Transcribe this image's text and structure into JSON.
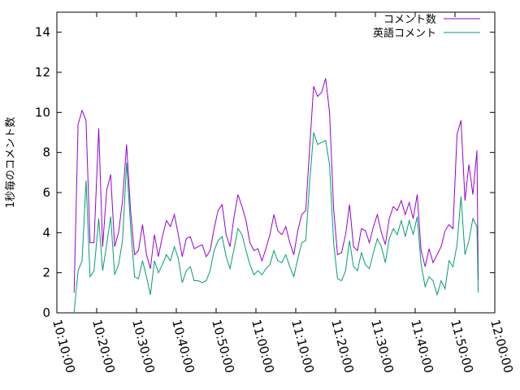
{
  "chart_data": {
    "type": "line",
    "title": "",
    "xlabel": "",
    "ylabel": "1秒毎のコメント数",
    "xlim": [
      "10:10:00",
      "12:00:00"
    ],
    "ylim": [
      0,
      15
    ],
    "x_ticks": [
      "10:10:00",
      "10:20:00",
      "10:30:00",
      "10:40:00",
      "10:50:00",
      "11:00:00",
      "11:10:00",
      "11:20:00",
      "11:30:00",
      "11:40:00",
      "11:50:00",
      "12:00:00"
    ],
    "y_ticks": [
      0,
      2,
      4,
      6,
      8,
      10,
      12,
      14
    ],
    "grid": false,
    "legend_position": "top-right",
    "series": [
      {
        "name": "コメント数",
        "color": "#9400d3",
        "points": [
          [
            "10:14:20",
            1.0
          ],
          [
            "10:15:20",
            9.4
          ],
          [
            "10:16:20",
            10.1
          ],
          [
            "10:17:20",
            9.6
          ],
          [
            "10:18:20",
            3.5
          ],
          [
            "10:19:20",
            3.5
          ],
          [
            "10:20:30",
            9.2
          ],
          [
            "10:21:30",
            3.3
          ],
          [
            "10:22:30",
            6.1
          ],
          [
            "10:23:30",
            6.9
          ],
          [
            "10:24:30",
            3.3
          ],
          [
            "10:25:30",
            4.0
          ],
          [
            "10:26:30",
            5.6
          ],
          [
            "10:27:30",
            8.4
          ],
          [
            "10:28:30",
            5.1
          ],
          [
            "10:29:30",
            2.9
          ],
          [
            "10:30:30",
            3.1
          ],
          [
            "10:31:30",
            4.4
          ],
          [
            "10:32:30",
            2.9
          ],
          [
            "10:33:30",
            2.2
          ],
          [
            "10:34:30",
            3.9
          ],
          [
            "10:35:30",
            2.8
          ],
          [
            "10:36:30",
            3.8
          ],
          [
            "10:37:30",
            4.6
          ],
          [
            "10:38:30",
            4.3
          ],
          [
            "10:39:30",
            4.9
          ],
          [
            "10:40:30",
            3.9
          ],
          [
            "10:41:30",
            2.8
          ],
          [
            "10:42:30",
            3.7
          ],
          [
            "10:43:30",
            3.8
          ],
          [
            "10:44:30",
            3.2
          ],
          [
            "10:45:30",
            3.3
          ],
          [
            "10:46:30",
            3.4
          ],
          [
            "10:47:30",
            2.8
          ],
          [
            "10:48:30",
            3.1
          ],
          [
            "10:49:30",
            4.2
          ],
          [
            "10:50:30",
            5.1
          ],
          [
            "10:51:30",
            5.4
          ],
          [
            "10:52:30",
            3.9
          ],
          [
            "10:53:30",
            3.3
          ],
          [
            "10:54:30",
            4.8
          ],
          [
            "10:55:30",
            5.9
          ],
          [
            "10:56:30",
            5.3
          ],
          [
            "10:57:30",
            4.6
          ],
          [
            "10:58:30",
            3.5
          ],
          [
            "10:59:30",
            3.1
          ],
          [
            "11:00:30",
            3.2
          ],
          [
            "11:01:30",
            2.6
          ],
          [
            "11:02:30",
            3.2
          ],
          [
            "11:03:30",
            3.9
          ],
          [
            "11:04:30",
            4.9
          ],
          [
            "11:05:30",
            4.1
          ],
          [
            "11:06:30",
            3.9
          ],
          [
            "11:07:30",
            4.3
          ],
          [
            "11:08:30",
            3.5
          ],
          [
            "11:09:30",
            2.9
          ],
          [
            "11:10:30",
            4.1
          ],
          [
            "11:11:30",
            4.9
          ],
          [
            "11:12:30",
            5.1
          ],
          [
            "11:13:30",
            8.2
          ],
          [
            "11:14:30",
            11.3
          ],
          [
            "11:15:30",
            10.8
          ],
          [
            "11:16:30",
            11.0
          ],
          [
            "11:17:30",
            11.7
          ],
          [
            "11:18:30",
            10.0
          ],
          [
            "11:19:30",
            5.2
          ],
          [
            "11:20:30",
            2.9
          ],
          [
            "11:21:30",
            3.0
          ],
          [
            "11:22:30",
            3.9
          ],
          [
            "11:23:30",
            5.4
          ],
          [
            "11:24:30",
            3.3
          ],
          [
            "11:25:30",
            3.1
          ],
          [
            "11:26:30",
            4.2
          ],
          [
            "11:27:30",
            4.1
          ],
          [
            "11:28:30",
            3.5
          ],
          [
            "11:29:30",
            4.3
          ],
          [
            "11:30:30",
            4.9
          ],
          [
            "11:31:30",
            4.0
          ],
          [
            "11:32:30",
            3.4
          ],
          [
            "11:33:30",
            4.7
          ],
          [
            "11:34:30",
            5.3
          ],
          [
            "11:35:30",
            5.1
          ],
          [
            "11:36:30",
            5.6
          ],
          [
            "11:37:30",
            4.9
          ],
          [
            "11:38:30",
            5.5
          ],
          [
            "11:39:30",
            4.7
          ],
          [
            "11:40:30",
            5.9
          ],
          [
            "11:41:30",
            3.1
          ],
          [
            "11:42:30",
            2.3
          ],
          [
            "11:43:30",
            3.2
          ],
          [
            "11:44:30",
            2.5
          ],
          [
            "11:45:30",
            2.9
          ],
          [
            "11:46:30",
            3.3
          ],
          [
            "11:47:30",
            4.1
          ],
          [
            "11:48:30",
            4.4
          ],
          [
            "11:49:30",
            4.2
          ],
          [
            "11:50:30",
            8.9
          ],
          [
            "11:51:30",
            9.6
          ],
          [
            "11:52:30",
            5.6
          ],
          [
            "11:53:30",
            7.4
          ],
          [
            "11:54:30",
            5.9
          ],
          [
            "11:55:30",
            8.1
          ],
          [
            "11:55:50",
            1.6
          ]
        ]
      },
      {
        "name": "英語コメント",
        "color": "#009e73",
        "points": [
          [
            "10:14:20",
            0.0
          ],
          [
            "10:15:20",
            2.1
          ],
          [
            "10:16:20",
            2.6
          ],
          [
            "10:17:20",
            6.6
          ],
          [
            "10:18:20",
            1.8
          ],
          [
            "10:19:20",
            2.1
          ],
          [
            "10:20:30",
            4.7
          ],
          [
            "10:21:30",
            2.1
          ],
          [
            "10:22:30",
            3.4
          ],
          [
            "10:23:30",
            4.8
          ],
          [
            "10:24:30",
            1.9
          ],
          [
            "10:25:30",
            2.4
          ],
          [
            "10:26:30",
            3.6
          ],
          [
            "10:27:30",
            7.5
          ],
          [
            "10:28:30",
            4.3
          ],
          [
            "10:29:30",
            1.8
          ],
          [
            "10:30:30",
            1.7
          ],
          [
            "10:31:30",
            2.6
          ],
          [
            "10:32:30",
            1.8
          ],
          [
            "10:33:30",
            0.9
          ],
          [
            "10:34:30",
            2.6
          ],
          [
            "10:35:30",
            2.0
          ],
          [
            "10:36:30",
            2.4
          ],
          [
            "10:37:30",
            2.9
          ],
          [
            "10:38:30",
            2.6
          ],
          [
            "10:39:30",
            3.3
          ],
          [
            "10:40:30",
            2.7
          ],
          [
            "10:41:30",
            1.5
          ],
          [
            "10:42:30",
            2.1
          ],
          [
            "10:43:30",
            2.3
          ],
          [
            "10:44:30",
            1.6
          ],
          [
            "10:45:30",
            1.6
          ],
          [
            "10:46:30",
            1.5
          ],
          [
            "10:47:30",
            1.6
          ],
          [
            "10:48:30",
            2.1
          ],
          [
            "10:49:30",
            3.1
          ],
          [
            "10:50:30",
            3.6
          ],
          [
            "10:51:30",
            3.8
          ],
          [
            "10:52:30",
            2.8
          ],
          [
            "10:53:30",
            2.2
          ],
          [
            "10:54:30",
            3.2
          ],
          [
            "10:55:30",
            4.2
          ],
          [
            "10:56:30",
            3.9
          ],
          [
            "10:57:30",
            3.1
          ],
          [
            "10:58:30",
            2.4
          ],
          [
            "10:59:30",
            1.9
          ],
          [
            "11:00:30",
            2.1
          ],
          [
            "11:01:30",
            1.9
          ],
          [
            "11:02:30",
            2.2
          ],
          [
            "11:03:30",
            2.4
          ],
          [
            "11:04:30",
            3.1
          ],
          [
            "11:05:30",
            2.6
          ],
          [
            "11:06:30",
            2.5
          ],
          [
            "11:07:30",
            2.9
          ],
          [
            "11:08:30",
            2.3
          ],
          [
            "11:09:30",
            1.8
          ],
          [
            "11:10:30",
            2.7
          ],
          [
            "11:11:30",
            3.5
          ],
          [
            "11:12:30",
            3.6
          ],
          [
            "11:13:30",
            6.5
          ],
          [
            "11:14:30",
            9.0
          ],
          [
            "11:15:30",
            8.4
          ],
          [
            "11:16:30",
            8.5
          ],
          [
            "11:17:30",
            8.6
          ],
          [
            "11:18:30",
            7.4
          ],
          [
            "11:19:30",
            3.5
          ],
          [
            "11:20:30",
            1.7
          ],
          [
            "11:21:30",
            1.6
          ],
          [
            "11:22:30",
            2.1
          ],
          [
            "11:23:30",
            3.6
          ],
          [
            "11:24:30",
            2.3
          ],
          [
            "11:25:30",
            2.1
          ],
          [
            "11:26:30",
            3.0
          ],
          [
            "11:27:30",
            2.4
          ],
          [
            "11:28:30",
            2.2
          ],
          [
            "11:29:30",
            3.0
          ],
          [
            "11:30:30",
            3.7
          ],
          [
            "11:31:30",
            3.3
          ],
          [
            "11:32:30",
            2.5
          ],
          [
            "11:33:30",
            3.7
          ],
          [
            "11:34:30",
            4.2
          ],
          [
            "11:35:30",
            3.9
          ],
          [
            "11:36:30",
            4.6
          ],
          [
            "11:37:30",
            3.8
          ],
          [
            "11:38:30",
            4.6
          ],
          [
            "11:39:30",
            3.9
          ],
          [
            "11:40:30",
            4.8
          ],
          [
            "11:41:30",
            2.4
          ],
          [
            "11:42:30",
            1.3
          ],
          [
            "11:43:30",
            1.8
          ],
          [
            "11:44:30",
            1.6
          ],
          [
            "11:45:30",
            0.9
          ],
          [
            "11:46:30",
            1.6
          ],
          [
            "11:47:30",
            1.2
          ],
          [
            "11:48:30",
            2.6
          ],
          [
            "11:49:30",
            2.3
          ],
          [
            "11:50:30",
            3.4
          ],
          [
            "11:51:30",
            5.8
          ],
          [
            "11:52:30",
            2.9
          ],
          [
            "11:53:30",
            3.6
          ],
          [
            "11:54:30",
            4.7
          ],
          [
            "11:55:30",
            4.3
          ],
          [
            "11:55:50",
            1.0
          ]
        ]
      }
    ]
  }
}
